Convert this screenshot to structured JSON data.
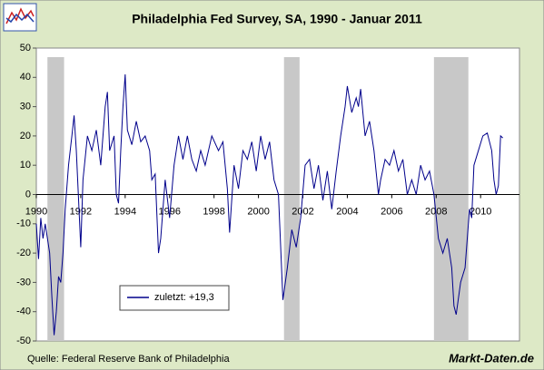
{
  "chart_data": {
    "type": "line",
    "title": "Philadelphia Fed Survey, SA, 1990 - Januar 2011",
    "source": "Quelle: Federal Reserve Bank of Philadelphia",
    "brand": "Markt-Daten.de",
    "xlim": [
      1990,
      2011.75
    ],
    "xticks": [
      1990,
      1992,
      1994,
      1996,
      1998,
      2000,
      2002,
      2004,
      2006,
      2008,
      2010
    ],
    "ylim": [
      -50,
      50
    ],
    "yticks": [
      -50,
      -40,
      -30,
      -20,
      -10,
      0,
      10,
      20,
      30,
      40,
      50
    ],
    "shaded": [
      [
        1990.5,
        1991.25
      ],
      [
        2001.15,
        2001.85
      ],
      [
        2007.9,
        2009.45
      ]
    ],
    "shade_color": "#c8c8c8",
    "x": [
      1990.0,
      1990.1,
      1990.2,
      1990.3,
      1990.4,
      1990.6,
      1990.7,
      1990.8,
      1990.9,
      1991.0,
      1991.1,
      1991.2,
      1991.3,
      1991.45,
      1991.6,
      1991.7,
      1991.8,
      1992.0,
      1992.1,
      1992.3,
      1992.5,
      1992.7,
      1992.9,
      1993.1,
      1993.2,
      1993.3,
      1993.5,
      1993.6,
      1993.7,
      1993.8,
      1993.9,
      1994.0,
      1994.1,
      1994.3,
      1994.5,
      1994.7,
      1994.9,
      1995.1,
      1995.2,
      1995.35,
      1995.5,
      1995.6,
      1995.8,
      1996.0,
      1996.2,
      1996.4,
      1996.6,
      1996.8,
      1997.0,
      1997.2,
      1997.4,
      1997.6,
      1997.9,
      1998.2,
      1998.4,
      1998.6,
      1998.7,
      1998.9,
      1999.1,
      1999.3,
      1999.5,
      1999.7,
      1999.9,
      2000.1,
      2000.3,
      2000.5,
      2000.7,
      2000.9,
      2001.1,
      2001.3,
      2001.5,
      2001.7,
      2001.9,
      2002.1,
      2002.3,
      2002.5,
      2002.7,
      2002.9,
      2003.1,
      2003.3,
      2003.5,
      2003.7,
      2003.9,
      2004.0,
      2004.2,
      2004.4,
      2004.5,
      2004.6,
      2004.8,
      2005.0,
      2005.2,
      2005.4,
      2005.5,
      2005.7,
      2005.9,
      2006.1,
      2006.3,
      2006.5,
      2006.7,
      2006.9,
      2007.1,
      2007.3,
      2007.5,
      2007.7,
      2007.9,
      2008.1,
      2008.3,
      2008.5,
      2008.7,
      2008.8,
      2008.9,
      2009.1,
      2009.3,
      2009.5,
      2009.6,
      2009.7,
      2009.9,
      2010.1,
      2010.3,
      2010.5,
      2010.6,
      2010.7,
      2010.8,
      2010.9,
      2011.0
    ],
    "series": [
      {
        "name": "zuletzt: +19,3",
        "color": "#00008b",
        "values": [
          -10,
          -22,
          -8,
          -15,
          -10,
          -20,
          -35,
          -48,
          -40,
          -28,
          -30,
          -20,
          -5,
          10,
          20,
          27,
          15,
          -18,
          5,
          20,
          15,
          22,
          10,
          30,
          35,
          15,
          20,
          0,
          -3,
          15,
          30,
          41,
          22,
          17,
          25,
          18,
          20,
          15,
          5,
          7,
          -20,
          -15,
          5,
          -8,
          10,
          20,
          12,
          20,
          12,
          8,
          15,
          10,
          20,
          15,
          18,
          2,
          -13,
          10,
          2,
          15,
          12,
          18,
          8,
          20,
          12,
          18,
          5,
          0,
          -36,
          -25,
          -12,
          -18,
          -8,
          10,
          12,
          2,
          10,
          -2,
          8,
          -5,
          8,
          20,
          30,
          37,
          28,
          33,
          30,
          36,
          20,
          25,
          15,
          0,
          5,
          12,
          10,
          15,
          8,
          12,
          0,
          5,
          0,
          10,
          5,
          8,
          0,
          -15,
          -20,
          -15,
          -25,
          -38,
          -41,
          -30,
          -25,
          -5,
          -8,
          10,
          15,
          20,
          21,
          15,
          5,
          0,
          3,
          20,
          19.3
        ]
      }
    ]
  }
}
